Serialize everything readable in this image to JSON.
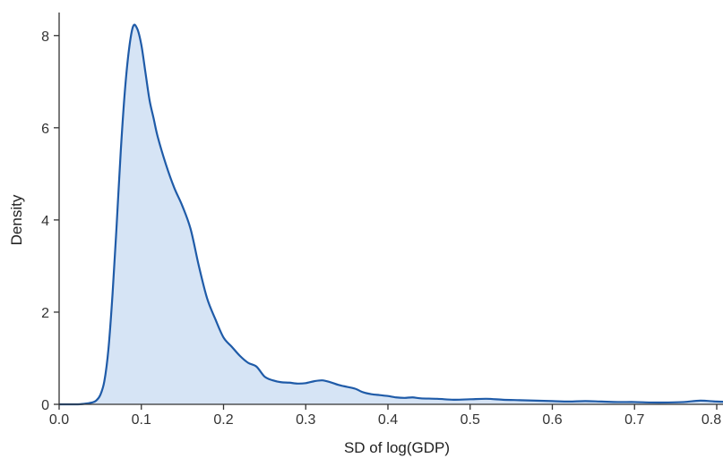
{
  "chart_data": {
    "type": "area",
    "title": "",
    "xlabel": "SD of log(GDP)",
    "ylabel": "Density",
    "xlim": [
      0.0,
      0.82
    ],
    "ylim": [
      0,
      8.5
    ],
    "x_ticks": [
      0.0,
      0.1,
      0.2,
      0.3,
      0.4,
      0.5,
      0.6,
      0.7,
      0.8
    ],
    "x_tick_labels": [
      "0.0",
      "0.1",
      "0.2",
      "0.3",
      "0.4",
      "0.5",
      "0.6",
      "0.7",
      "0.8"
    ],
    "y_ticks": [
      0,
      2,
      4,
      6,
      8
    ],
    "y_tick_labels": [
      "0",
      "2",
      "4",
      "6",
      "8"
    ],
    "grid": false,
    "colors": {
      "line": "#1f5ba8",
      "fill": "#d6e4f5"
    },
    "series": [
      {
        "x": [
          0.0,
          0.02,
          0.03,
          0.04,
          0.045,
          0.05,
          0.055,
          0.06,
          0.065,
          0.07,
          0.075,
          0.08,
          0.085,
          0.09,
          0.095,
          0.1,
          0.105,
          0.11,
          0.115,
          0.12,
          0.13,
          0.14,
          0.15,
          0.16,
          0.17,
          0.18,
          0.19,
          0.2,
          0.21,
          0.22,
          0.23,
          0.24,
          0.25,
          0.26,
          0.27,
          0.28,
          0.29,
          0.3,
          0.31,
          0.32,
          0.33,
          0.34,
          0.35,
          0.36,
          0.37,
          0.38,
          0.39,
          0.4,
          0.41,
          0.42,
          0.43,
          0.44,
          0.46,
          0.48,
          0.5,
          0.52,
          0.54,
          0.56,
          0.58,
          0.6,
          0.62,
          0.64,
          0.66,
          0.68,
          0.7,
          0.72,
          0.74,
          0.76,
          0.78,
          0.8,
          0.82
        ],
        "y": [
          0.0,
          0.0,
          0.01,
          0.04,
          0.08,
          0.2,
          0.5,
          1.2,
          2.4,
          3.9,
          5.5,
          6.8,
          7.7,
          8.2,
          8.15,
          7.8,
          7.2,
          6.6,
          6.2,
          5.8,
          5.2,
          4.7,
          4.3,
          3.8,
          3.0,
          2.3,
          1.85,
          1.45,
          1.25,
          1.05,
          0.9,
          0.82,
          0.6,
          0.52,
          0.48,
          0.47,
          0.45,
          0.46,
          0.5,
          0.52,
          0.48,
          0.42,
          0.38,
          0.34,
          0.26,
          0.22,
          0.2,
          0.18,
          0.15,
          0.14,
          0.15,
          0.13,
          0.12,
          0.1,
          0.11,
          0.12,
          0.1,
          0.09,
          0.08,
          0.07,
          0.06,
          0.07,
          0.06,
          0.05,
          0.05,
          0.04,
          0.04,
          0.05,
          0.08,
          0.06,
          0.05
        ]
      }
    ]
  }
}
